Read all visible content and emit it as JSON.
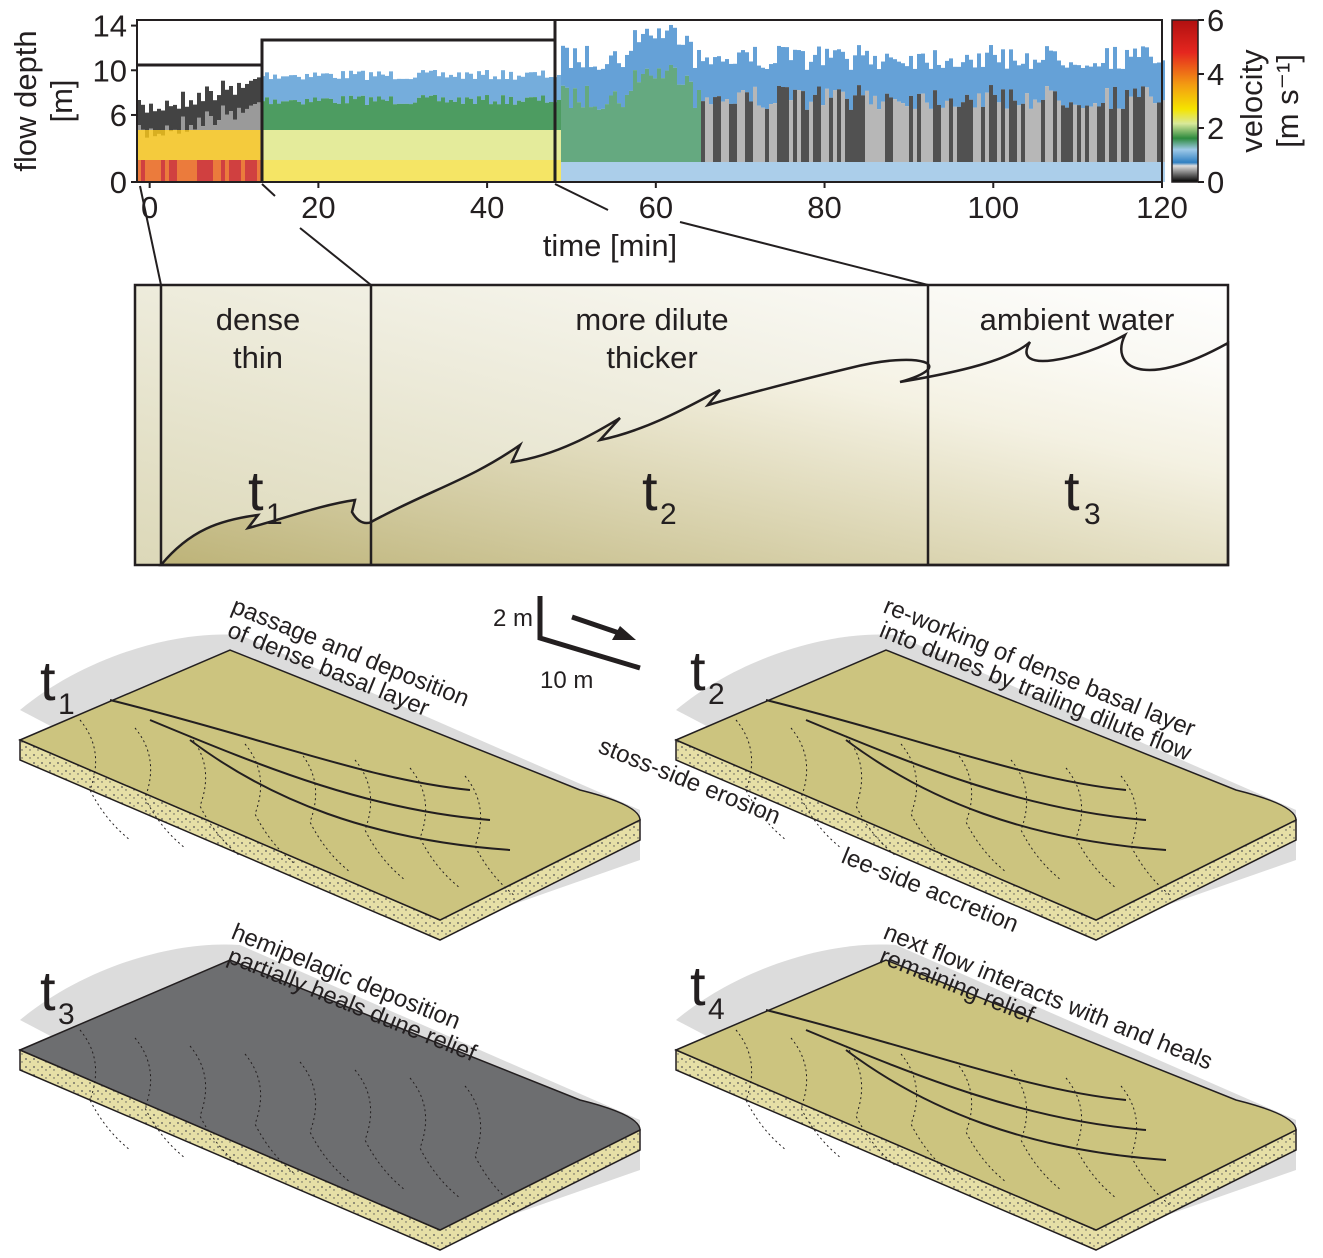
{
  "chart_data": {
    "type": "heatmap",
    "ylabel": [
      "flow depth",
      "[m]"
    ],
    "xlabel": "time [min]",
    "colorbar_label": [
      "velocity",
      "[m s⁻¹]"
    ],
    "xlim": [
      -1.5,
      120
    ],
    "xticks": [
      0,
      20,
      40,
      60,
      80,
      100,
      120
    ],
    "ylim": [
      0,
      14.5
    ],
    "yticks": [
      0,
      6,
      10,
      14
    ],
    "clim": [
      0,
      6
    ],
    "cticks": [
      0,
      2,
      4,
      6
    ]
  },
  "schematic": {
    "phases": [
      {
        "lines": [
          "dense",
          "thin"
        ]
      },
      {
        "lines": [
          "more dilute",
          "thicker"
        ]
      },
      {
        "lines": [
          "ambient water"
        ]
      }
    ],
    "time_labels": [
      {
        "letter": "t",
        "sub": "1"
      },
      {
        "letter": "t",
        "sub": "2"
      },
      {
        "letter": "t",
        "sub": "3"
      }
    ]
  },
  "blocks": {
    "scale": {
      "vertical": "2 m",
      "horizontal": "10 m"
    },
    "panels": [
      {
        "letter": "t",
        "sub": "1",
        "lines": [
          "passage and deposition",
          "of dense basal layer"
        ]
      },
      {
        "letter": "t",
        "sub": "2",
        "lines": [
          "re-working of dense basal layer",
          "into dunes by trailing dilute flow"
        ],
        "notes": [
          "stoss-side erosion",
          "lee-side accretion"
        ]
      },
      {
        "letter": "t",
        "sub": "3",
        "lines": [
          "hemipelagic deposition",
          "partially heals dune relief"
        ]
      },
      {
        "letter": "t",
        "sub": "4",
        "lines": [
          "next flow interacts with and heals",
          "remaining relief"
        ]
      }
    ]
  }
}
